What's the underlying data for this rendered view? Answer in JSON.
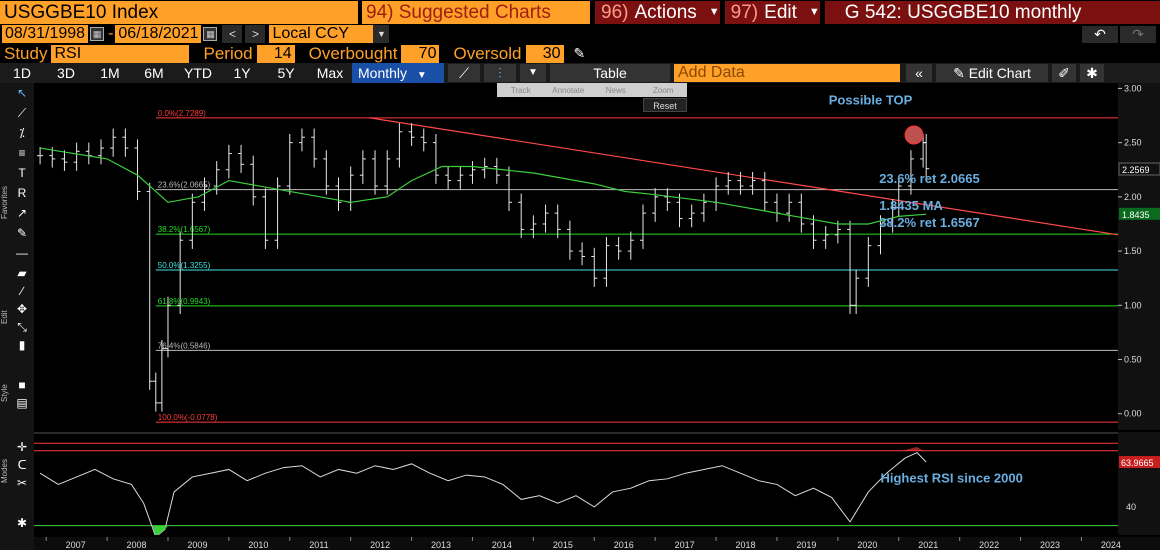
{
  "header": {
    "ticker": "USGGBE10 Index",
    "suggested": "94) Suggested Charts",
    "actions_num": "96)",
    "actions": "Actions",
    "edit_num": "97)",
    "edit": "Edit",
    "chart_title": "G 542: USGGBE10 monthly"
  },
  "range": {
    "start": "08/31/1998",
    "dash": "-",
    "end": "06/18/2021",
    "currency": "Local CCY"
  },
  "study": {
    "label": "Study",
    "value": "RSI",
    "period_label": "Period",
    "period": "14",
    "overbought_label": "Overbought",
    "overbought": "70",
    "oversold_label": "Oversold",
    "oversold": "30"
  },
  "toolbar": {
    "periods": [
      "1D",
      "3D",
      "1M",
      "6M",
      "YTD",
      "1Y",
      "5Y",
      "Max"
    ],
    "frequency": "Monthly",
    "table": "Table",
    "add_data": "Add Data",
    "edit_chart": "Edit Chart"
  },
  "zoom_bar": {
    "track": "Track",
    "annotate": "Annotate",
    "news": "News",
    "zoom": "Zoom",
    "reset": "Reset"
  },
  "left_toolbar": {
    "favorites": "Favorites",
    "edit": "Edit",
    "style": "Style",
    "modes": "Modes"
  },
  "colors": {
    "accent_orange": "#ffa028",
    "menu_red": "#7a1010",
    "active_blue": "#1a4fa8",
    "annotation_blue": "#6aaee0",
    "price_axis_label": "#0a6b1f"
  },
  "chart_data": [
    {
      "type": "line",
      "style": "ohlc-bars",
      "title": "",
      "x_range": [
        2006.8,
        2024.6
      ],
      "ylim": [
        -0.15,
        3.05
      ],
      "y_ticks": [
        "3.00",
        "2.50",
        "2.00",
        "1.50",
        "1.00",
        "0.50",
        "0.00"
      ],
      "y_tick_values": [
        3.0,
        2.5,
        2.0,
        1.5,
        1.0,
        0.5,
        0.0
      ],
      "grid": false,
      "last_price": "2.2569",
      "ma_value": "1.8435",
      "series": [
        {
          "name": "USGGBE10",
          "x": [
            2006.9,
            2007.1,
            2007.3,
            2007.5,
            2007.7,
            2007.9,
            2008.1,
            2008.3,
            2008.5,
            2008.7,
            2008.8,
            2008.9,
            2009.0,
            2009.2,
            2009.4,
            2009.6,
            2009.8,
            2010.0,
            2010.2,
            2010.4,
            2010.6,
            2010.8,
            2011.0,
            2011.2,
            2011.4,
            2011.6,
            2011.8,
            2012.0,
            2012.2,
            2012.4,
            2012.6,
            2012.8,
            2013.0,
            2013.2,
            2013.4,
            2013.6,
            2013.8,
            2014.0,
            2014.2,
            2014.4,
            2014.6,
            2014.8,
            2015.0,
            2015.2,
            2015.4,
            2015.6,
            2015.8,
            2016.0,
            2016.2,
            2016.4,
            2016.6,
            2016.8,
            2017.0,
            2017.2,
            2017.4,
            2017.6,
            2017.8,
            2018.0,
            2018.2,
            2018.4,
            2018.6,
            2018.8,
            2019.0,
            2019.2,
            2019.4,
            2019.6,
            2019.8,
            2020.0,
            2020.2,
            2020.3,
            2020.5,
            2020.7,
            2020.9,
            2021.0,
            2021.2,
            2021.4,
            2021.45
          ],
          "y": [
            2.38,
            2.35,
            2.32,
            2.42,
            2.38,
            2.45,
            2.55,
            2.45,
            2.05,
            0.3,
            0.1,
            0.6,
            1.0,
            1.6,
            1.95,
            2.1,
            2.25,
            2.4,
            2.3,
            2.0,
            1.6,
            2.1,
            2.5,
            2.55,
            2.35,
            2.1,
            1.95,
            2.2,
            2.35,
            2.1,
            2.35,
            2.6,
            2.55,
            2.5,
            2.2,
            2.15,
            2.2,
            2.25,
            2.28,
            2.2,
            1.95,
            1.7,
            1.75,
            1.85,
            1.7,
            1.5,
            1.45,
            1.25,
            1.55,
            1.5,
            1.6,
            1.85,
            2.0,
            1.95,
            1.8,
            1.85,
            1.95,
            2.1,
            2.15,
            2.1,
            2.15,
            1.95,
            1.85,
            1.95,
            1.75,
            1.6,
            1.65,
            1.7,
            1.0,
            1.25,
            1.55,
            1.75,
            1.9,
            2.1,
            2.35,
            2.5,
            2.26
          ]
        },
        {
          "name": "MA",
          "x": [
            2006.9,
            2008.0,
            2008.5,
            2009.0,
            2009.5,
            2010.0,
            2011.0,
            2012.0,
            2012.6,
            2013.0,
            2013.5,
            2014.0,
            2015.0,
            2016.0,
            2016.5,
            2017.0,
            2018.0,
            2019.0,
            2019.5,
            2020.0,
            2020.5,
            2021.0,
            2021.45
          ],
          "y": [
            2.45,
            2.35,
            2.2,
            1.95,
            2.0,
            2.15,
            2.05,
            1.95,
            2.0,
            2.15,
            2.28,
            2.28,
            2.22,
            2.12,
            2.05,
            2.02,
            1.95,
            1.85,
            1.8,
            1.75,
            1.75,
            1.82,
            1.84
          ]
        }
      ],
      "trendline": {
        "from": [
          2012.3,
          2.73
        ],
        "to": [
          2024.6,
          1.65
        ]
      },
      "fib_levels": [
        {
          "label": "0.0%(2.7289)",
          "value": 2.7289,
          "color": "#ff3a3a"
        },
        {
          "label": "23.6%(2.0665)",
          "value": 2.0665,
          "color": "#bbbbbb"
        },
        {
          "label": "38.2%(1.6567)",
          "value": 1.6567,
          "color": "#22dd22"
        },
        {
          "label": "50.0%(1.3255)",
          "value": 1.3255,
          "color": "#44e0e0"
        },
        {
          "label": "61.8%(0.9943)",
          "value": 0.9943,
          "color": "#22dd22"
        },
        {
          "label": "76.4%(0.5846)",
          "value": 0.5846,
          "color": "#bbbbbb"
        },
        {
          "label": "100.0%(-0.0778)",
          "value": -0.0778,
          "color": "#ff3a3a"
        }
      ],
      "annotations": [
        {
          "text": "Possible TOP",
          "x": 2021.0,
          "y": 2.85
        },
        {
          "text": "23.6% ret 2.0665",
          "x": 2021.5,
          "y": 2.13
        },
        {
          "text": "1.8435 MA",
          "x": 2021.5,
          "y": 1.88
        },
        {
          "text": "38.2% ret 1.6567",
          "x": 2021.5,
          "y": 1.72
        }
      ]
    },
    {
      "type": "line",
      "title": "RSI",
      "ylim": [
        25,
        80
      ],
      "y_ticks": [
        "40"
      ],
      "y_tick_values": [
        40
      ],
      "overbought": 70,
      "oversold": 30,
      "last_value": "63.9665",
      "annotation": "Highest RSI since 2000",
      "series": [
        {
          "name": "RSI",
          "x": [
            2006.9,
            2007.2,
            2007.5,
            2007.8,
            2008.1,
            2008.4,
            2008.6,
            2008.8,
            2008.95,
            2009.1,
            2009.4,
            2009.7,
            2010.0,
            2010.3,
            2010.6,
            2010.9,
            2011.2,
            2011.5,
            2011.8,
            2012.1,
            2012.4,
            2012.7,
            2013.0,
            2013.3,
            2013.6,
            2013.9,
            2014.2,
            2014.5,
            2014.8,
            2015.1,
            2015.4,
            2015.7,
            2016.0,
            2016.3,
            2016.6,
            2016.9,
            2017.2,
            2017.5,
            2017.8,
            2018.1,
            2018.4,
            2018.7,
            2019.0,
            2019.3,
            2019.6,
            2019.9,
            2020.2,
            2020.5,
            2020.8,
            2021.1,
            2021.3,
            2021.45
          ],
          "y": [
            58,
            52,
            56,
            60,
            55,
            52,
            42,
            24,
            28,
            48,
            56,
            58,
            60,
            54,
            58,
            61,
            62,
            56,
            60,
            58,
            62,
            60,
            63,
            58,
            54,
            57,
            56,
            52,
            44,
            46,
            42,
            46,
            40,
            48,
            50,
            54,
            55,
            58,
            60,
            62,
            58,
            54,
            52,
            46,
            50,
            45,
            32,
            48,
            58,
            66,
            69,
            64
          ]
        }
      ]
    }
  ],
  "x_axis": {
    "ticks": [
      "2007",
      "2008",
      "2009",
      "2010",
      "2011",
      "2012",
      "2013",
      "2014",
      "2015",
      "2016",
      "2017",
      "2018",
      "2019",
      "2020",
      "2021",
      "2022",
      "2023",
      "2024"
    ]
  }
}
